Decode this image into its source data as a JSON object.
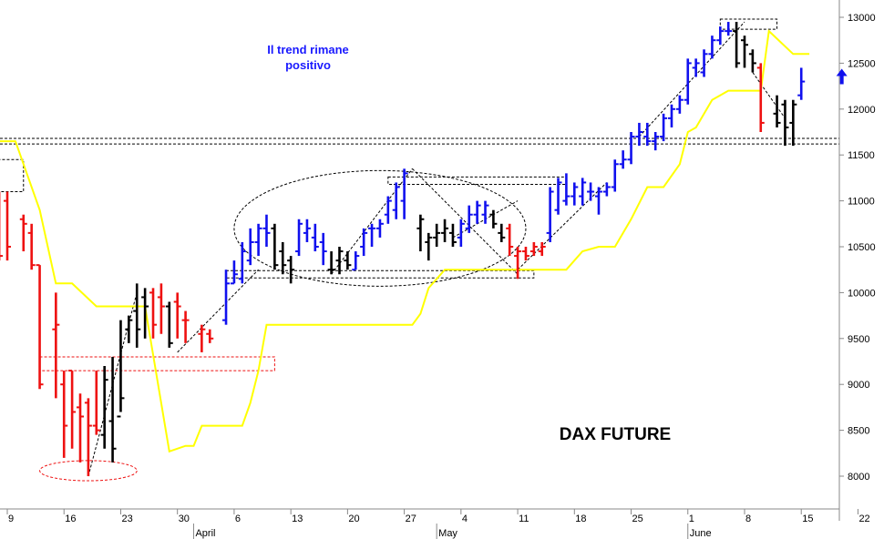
{
  "chart_data": {
    "type": "ohlc",
    "title": "DAX FUTURE",
    "comment_lines": [
      "Il trend rimane",
      "positivo"
    ],
    "ylim": [
      7650,
      13150
    ],
    "y_ticks": [
      8000,
      8500,
      9000,
      9500,
      10000,
      10500,
      11000,
      11500,
      12000,
      12500,
      13000
    ],
    "x_ticks": [
      {
        "label": "9",
        "day": 0
      },
      {
        "label": "16",
        "day": 7
      },
      {
        "label": "23",
        "day": 14
      },
      {
        "label": "30",
        "day": 21
      },
      {
        "label": "6",
        "day": 28
      },
      {
        "label": "13",
        "day": 35
      },
      {
        "label": "20",
        "day": 42
      },
      {
        "label": "27",
        "day": 49
      },
      {
        "label": "4",
        "day": 56
      },
      {
        "label": "11",
        "day": 63
      },
      {
        "label": "18",
        "day": 70
      },
      {
        "label": "25",
        "day": 77
      },
      {
        "label": "1",
        "day": 84
      },
      {
        "label": "8",
        "day": 91
      },
      {
        "label": "15",
        "day": 98
      },
      {
        "label": "22",
        "day": 105
      }
    ],
    "months": [
      {
        "label": "April",
        "day": 23
      },
      {
        "label": "May",
        "day": 53
      },
      {
        "label": "June",
        "day": 84
      }
    ],
    "colors": {
      "up": "#1010ee",
      "down": "#ee1111",
      "neutral": "#000000",
      "trend": "#ffff00",
      "annotation": "#ee1111",
      "arrow": "#1010ee"
    },
    "bars": [
      {
        "d": -1,
        "o": 11050,
        "h": 11100,
        "l": 10350,
        "c": 10400,
        "color": "down"
      },
      {
        "d": 0,
        "o": 11000,
        "h": 11100,
        "l": 10350,
        "c": 10500,
        "color": "down"
      },
      {
        "d": 2,
        "o": 10800,
        "h": 10850,
        "l": 10450,
        "c": 10750,
        "color": "down"
      },
      {
        "d": 3,
        "o": 10650,
        "h": 10750,
        "l": 10250,
        "c": 10300,
        "color": "down"
      },
      {
        "d": 4,
        "o": 10300,
        "h": 10300,
        "l": 8950,
        "c": 9000,
        "color": "down"
      },
      {
        "d": 6,
        "o": 9600,
        "h": 10000,
        "l": 8850,
        "c": 9650,
        "color": "down"
      },
      {
        "d": 7,
        "o": 9000,
        "h": 9150,
        "l": 8200,
        "c": 8550,
        "color": "down"
      },
      {
        "d": 8,
        "o": 9150,
        "h": 9150,
        "l": 8300,
        "c": 8700,
        "color": "down"
      },
      {
        "d": 9,
        "o": 8750,
        "h": 8900,
        "l": 8150,
        "c": 8650,
        "color": "down"
      },
      {
        "d": 10,
        "o": 8800,
        "h": 8850,
        "l": 8000,
        "c": 8550,
        "color": "down"
      },
      {
        "d": 11,
        "o": 8550,
        "h": 9150,
        "l": 8450,
        "c": 8500,
        "color": "down"
      },
      {
        "d": 12,
        "o": 8450,
        "h": 9200,
        "l": 8300,
        "c": 9050,
        "color": "neutral"
      },
      {
        "d": 13,
        "o": 8600,
        "h": 9300,
        "l": 8150,
        "c": 8300,
        "color": "neutral"
      },
      {
        "d": 14,
        "o": 8650,
        "h": 9700,
        "l": 8700,
        "c": 8850,
        "color": "neutral"
      },
      {
        "d": 15,
        "o": 9600,
        "h": 9750,
        "l": 9450,
        "c": 9700,
        "color": "neutral"
      },
      {
        "d": 16,
        "o": 9800,
        "h": 10100,
        "l": 9400,
        "c": 9600,
        "color": "neutral"
      },
      {
        "d": 17,
        "o": 9950,
        "h": 10050,
        "l": 9500,
        "c": 9850,
        "color": "neutral"
      },
      {
        "d": 18,
        "o": 10000,
        "h": 10050,
        "l": 9500,
        "c": 9650,
        "color": "down"
      },
      {
        "d": 19,
        "o": 9950,
        "h": 10100,
        "l": 9550,
        "c": 9850,
        "color": "down"
      },
      {
        "d": 20,
        "o": 9850,
        "h": 9900,
        "l": 9400,
        "c": 9450,
        "color": "neutral"
      },
      {
        "d": 21,
        "o": 9900,
        "h": 10000,
        "l": 9500,
        "c": 9850,
        "color": "down"
      },
      {
        "d": 22,
        "o": 9700,
        "h": 9800,
        "l": 9450,
        "c": 9700,
        "color": "down"
      },
      {
        "d": 24,
        "o": 9550,
        "h": 9650,
        "l": 9350,
        "c": 9600,
        "color": "down"
      },
      {
        "d": 25,
        "o": 9550,
        "h": 9600,
        "l": 9450,
        "c": 9500,
        "color": "down"
      },
      {
        "d": 27,
        "o": 9700,
        "h": 10250,
        "l": 9650,
        "c": 10100,
        "color": "up"
      },
      {
        "d": 28,
        "o": 10100,
        "h": 10350,
        "l": 10100,
        "c": 10200,
        "color": "up"
      },
      {
        "d": 29,
        "o": 10150,
        "h": 10550,
        "l": 10100,
        "c": 10450,
        "color": "up"
      },
      {
        "d": 30,
        "o": 10350,
        "h": 10700,
        "l": 10300,
        "c": 10550,
        "color": "up"
      },
      {
        "d": 31,
        "o": 10550,
        "h": 10750,
        "l": 10400,
        "c": 10700,
        "color": "up"
      },
      {
        "d": 32,
        "o": 10700,
        "h": 10850,
        "l": 10500,
        "c": 10650,
        "color": "up"
      },
      {
        "d": 33,
        "o": 10700,
        "h": 10750,
        "l": 10250,
        "c": 10300,
        "color": "neutral"
      },
      {
        "d": 34,
        "o": 10450,
        "h": 10550,
        "l": 10200,
        "c": 10300,
        "color": "neutral"
      },
      {
        "d": 35,
        "o": 10350,
        "h": 10400,
        "l": 10100,
        "c": 10250,
        "color": "neutral"
      },
      {
        "d": 36,
        "o": 10450,
        "h": 10800,
        "l": 10400,
        "c": 10750,
        "color": "up"
      },
      {
        "d": 37,
        "o": 10650,
        "h": 10800,
        "l": 10550,
        "c": 10700,
        "color": "up"
      },
      {
        "d": 38,
        "o": 10600,
        "h": 10750,
        "l": 10450,
        "c": 10500,
        "color": "up"
      },
      {
        "d": 39,
        "o": 10550,
        "h": 10650,
        "l": 10300,
        "c": 10450,
        "color": "up"
      },
      {
        "d": 40,
        "o": 10250,
        "h": 10450,
        "l": 10200,
        "c": 10250,
        "color": "neutral"
      },
      {
        "d": 41,
        "o": 10350,
        "h": 10500,
        "l": 10200,
        "c": 10450,
        "color": "neutral"
      },
      {
        "d": 42,
        "o": 10350,
        "h": 10450,
        "l": 10250,
        "c": 10300,
        "color": "neutral"
      },
      {
        "d": 43,
        "o": 10250,
        "h": 10450,
        "l": 10250,
        "c": 10400,
        "color": "up"
      },
      {
        "d": 44,
        "o": 10500,
        "h": 10700,
        "l": 10400,
        "c": 10650,
        "color": "up"
      },
      {
        "d": 45,
        "o": 10700,
        "h": 10750,
        "l": 10500,
        "c": 10700,
        "color": "up"
      },
      {
        "d": 46,
        "o": 10700,
        "h": 10800,
        "l": 10600,
        "c": 10750,
        "color": "up"
      },
      {
        "d": 47,
        "o": 10850,
        "h": 11050,
        "l": 10750,
        "c": 11000,
        "color": "up"
      },
      {
        "d": 48,
        "o": 10900,
        "h": 11200,
        "l": 10800,
        "c": 11150,
        "color": "up"
      },
      {
        "d": 49,
        "o": 11000,
        "h": 11350,
        "l": 10800,
        "c": 11300,
        "color": "up"
      },
      {
        "d": 51,
        "o": 10700,
        "h": 10850,
        "l": 10450,
        "c": 10800,
        "color": "neutral"
      },
      {
        "d": 52,
        "o": 10550,
        "h": 10650,
        "l": 10350,
        "c": 10600,
        "color": "neutral"
      },
      {
        "d": 53,
        "o": 10600,
        "h": 10750,
        "l": 10500,
        "c": 10650,
        "color": "neutral"
      },
      {
        "d": 54,
        "o": 10650,
        "h": 10800,
        "l": 10550,
        "c": 10700,
        "color": "neutral"
      },
      {
        "d": 55,
        "o": 10650,
        "h": 10750,
        "l": 10500,
        "c": 10550,
        "color": "neutral"
      },
      {
        "d": 56,
        "o": 10600,
        "h": 10800,
        "l": 10500,
        "c": 10750,
        "color": "up"
      },
      {
        "d": 57,
        "o": 10700,
        "h": 10950,
        "l": 10650,
        "c": 10850,
        "color": "up"
      },
      {
        "d": 58,
        "o": 10850,
        "h": 11000,
        "l": 10750,
        "c": 10950,
        "color": "up"
      },
      {
        "d": 59,
        "o": 10850,
        "h": 11000,
        "l": 10750,
        "c": 10950,
        "color": "up"
      },
      {
        "d": 60,
        "o": 10850,
        "h": 10900,
        "l": 10700,
        "c": 10750,
        "color": "neutral"
      },
      {
        "d": 61,
        "o": 10650,
        "h": 10750,
        "l": 10550,
        "c": 10600,
        "color": "neutral"
      },
      {
        "d": 62,
        "o": 10700,
        "h": 10750,
        "l": 10400,
        "c": 10500,
        "color": "down"
      },
      {
        "d": 63,
        "o": 10400,
        "h": 10500,
        "l": 10150,
        "c": 10450,
        "color": "down"
      },
      {
        "d": 64,
        "o": 10450,
        "h": 10500,
        "l": 10350,
        "c": 10400,
        "color": "down"
      },
      {
        "d": 65,
        "o": 10450,
        "h": 10550,
        "l": 10400,
        "c": 10500,
        "color": "down"
      },
      {
        "d": 66,
        "o": 10450,
        "h": 10550,
        "l": 10400,
        "c": 10500,
        "color": "down"
      },
      {
        "d": 67,
        "o": 10650,
        "h": 11150,
        "l": 10550,
        "c": 11100,
        "color": "up"
      },
      {
        "d": 68,
        "o": 10900,
        "h": 11250,
        "l": 10850,
        "c": 11200,
        "color": "up"
      },
      {
        "d": 69,
        "o": 11000,
        "h": 11300,
        "l": 10950,
        "c": 11050,
        "color": "up"
      },
      {
        "d": 70,
        "o": 11050,
        "h": 11200,
        "l": 10950,
        "c": 11150,
        "color": "up"
      },
      {
        "d": 71,
        "o": 11050,
        "h": 11250,
        "l": 10950,
        "c": 11200,
        "color": "up"
      },
      {
        "d": 72,
        "o": 11100,
        "h": 11200,
        "l": 11000,
        "c": 11100,
        "color": "up"
      },
      {
        "d": 73,
        "o": 11050,
        "h": 11150,
        "l": 10850,
        "c": 11100,
        "color": "up"
      },
      {
        "d": 74,
        "o": 11100,
        "h": 11200,
        "l": 11050,
        "c": 11150,
        "color": "up"
      },
      {
        "d": 75,
        "o": 11150,
        "h": 11450,
        "l": 11100,
        "c": 11400,
        "color": "up"
      },
      {
        "d": 76,
        "o": 11400,
        "h": 11550,
        "l": 11350,
        "c": 11450,
        "color": "up"
      },
      {
        "d": 77,
        "o": 11450,
        "h": 11750,
        "l": 11400,
        "c": 11700,
        "color": "up"
      },
      {
        "d": 78,
        "o": 11700,
        "h": 11850,
        "l": 11600,
        "c": 11750,
        "color": "up"
      },
      {
        "d": 79,
        "o": 11700,
        "h": 11850,
        "l": 11600,
        "c": 11650,
        "color": "up"
      },
      {
        "d": 80,
        "o": 11650,
        "h": 11750,
        "l": 11550,
        "c": 11700,
        "color": "up"
      },
      {
        "d": 81,
        "o": 11700,
        "h": 11950,
        "l": 11650,
        "c": 11900,
        "color": "up"
      },
      {
        "d": 82,
        "o": 11900,
        "h": 12050,
        "l": 11800,
        "c": 12000,
        "color": "up"
      },
      {
        "d": 83,
        "o": 12000,
        "h": 12150,
        "l": 11950,
        "c": 12100,
        "color": "up"
      },
      {
        "d": 84,
        "o": 12100,
        "h": 12550,
        "l": 12050,
        "c": 12500,
        "color": "up"
      },
      {
        "d": 85,
        "o": 12450,
        "h": 12550,
        "l": 12350,
        "c": 12500,
        "color": "up"
      },
      {
        "d": 86,
        "o": 12400,
        "h": 12650,
        "l": 12350,
        "c": 12600,
        "color": "up"
      },
      {
        "d": 87,
        "o": 12600,
        "h": 12800,
        "l": 12550,
        "c": 12750,
        "color": "up"
      },
      {
        "d": 88,
        "o": 12750,
        "h": 12900,
        "l": 12700,
        "c": 12850,
        "color": "up"
      },
      {
        "d": 89,
        "o": 12850,
        "h": 12950,
        "l": 12800,
        "c": 12850,
        "color": "up"
      },
      {
        "d": 90,
        "o": 12850,
        "h": 12950,
        "l": 12450,
        "c": 12500,
        "color": "neutral"
      },
      {
        "d": 91,
        "o": 12750,
        "h": 12800,
        "l": 12450,
        "c": 12700,
        "color": "neutral"
      },
      {
        "d": 92,
        "o": 12600,
        "h": 12650,
        "l": 12400,
        "c": 12500,
        "color": "neutral"
      },
      {
        "d": 93,
        "o": 12450,
        "h": 12500,
        "l": 11750,
        "c": 11850,
        "color": "down"
      },
      {
        "d": 95,
        "o": 11950,
        "h": 12150,
        "l": 11800,
        "c": 11850,
        "color": "neutral"
      },
      {
        "d": 96,
        "o": 12050,
        "h": 12100,
        "l": 11600,
        "c": 11800,
        "color": "neutral"
      },
      {
        "d": 97,
        "o": 11850,
        "h": 12100,
        "l": 11600,
        "c": 12050,
        "color": "neutral"
      },
      {
        "d": 98,
        "o": 12150,
        "h": 12450,
        "l": 12100,
        "c": 12300,
        "color": "up"
      }
    ],
    "trend_line": [
      {
        "d": -3,
        "v": 12300
      },
      {
        "d": -2,
        "v": 11650
      },
      {
        "d": 1,
        "v": 11650
      },
      {
        "d": 4,
        "v": 10900
      },
      {
        "d": 6,
        "v": 10100
      },
      {
        "d": 8,
        "v": 10100
      },
      {
        "d": 11,
        "v": 9850
      },
      {
        "d": 17,
        "v": 9850
      },
      {
        "d": 20,
        "v": 8270
      },
      {
        "d": 22,
        "v": 8330
      },
      {
        "d": 23,
        "v": 8330
      },
      {
        "d": 24,
        "v": 8550
      },
      {
        "d": 29,
        "v": 8550
      },
      {
        "d": 30,
        "v": 8800
      },
      {
        "d": 31,
        "v": 9150
      },
      {
        "d": 32,
        "v": 9650
      },
      {
        "d": 50,
        "v": 9650
      },
      {
        "d": 51,
        "v": 9770
      },
      {
        "d": 52,
        "v": 10050
      },
      {
        "d": 54,
        "v": 10250
      },
      {
        "d": 69,
        "v": 10250
      },
      {
        "d": 71,
        "v": 10450
      },
      {
        "d": 73,
        "v": 10500
      },
      {
        "d": 75,
        "v": 10500
      },
      {
        "d": 77,
        "v": 10800
      },
      {
        "d": 79,
        "v": 11150
      },
      {
        "d": 81,
        "v": 11150
      },
      {
        "d": 83,
        "v": 11400
      },
      {
        "d": 84,
        "v": 11750
      },
      {
        "d": 85,
        "v": 11800
      },
      {
        "d": 87,
        "v": 12100
      },
      {
        "d": 89,
        "v": 12200
      },
      {
        "d": 93,
        "v": 12200
      },
      {
        "d": 94,
        "v": 12850
      },
      {
        "d": 97,
        "v": 12600
      },
      {
        "d": 99,
        "v": 12600
      }
    ],
    "support_lines": [
      11680,
      11620
    ],
    "annotation_boxes": [
      {
        "d0": 27,
        "d1": 65,
        "v0": 10160,
        "v1": 10240,
        "color": "black"
      },
      {
        "d0": 47,
        "d1": 69,
        "v0": 11180,
        "v1": 11260,
        "color": "black"
      },
      {
        "d0": 88,
        "d1": 95,
        "v0": 12870,
        "v1": 12980,
        "color": "black"
      },
      {
        "d0": -4,
        "d1": 2,
        "v0": 11100,
        "v1": 11450,
        "color": "black"
      },
      {
        "d0": 4,
        "d1": 33,
        "v0": 9150,
        "v1": 9300,
        "color": "red"
      }
    ],
    "trendlines_dashed": [
      [
        {
          "d": 10,
          "v": 8000
        },
        {
          "d": 16,
          "v": 10000
        }
      ],
      [
        {
          "d": 21,
          "v": 9350
        },
        {
          "d": 31,
          "v": 10250
        }
      ],
      [
        {
          "d": 40,
          "v": 10200
        },
        {
          "d": 50,
          "v": 11350
        }
      ],
      [
        {
          "d": 50,
          "v": 11350
        },
        {
          "d": 63,
          "v": 10200
        }
      ],
      [
        {
          "d": 55,
          "v": 10600
        },
        {
          "d": 63,
          "v": 11000
        }
      ],
      [
        {
          "d": 63,
          "v": 10250
        },
        {
          "d": 74,
          "v": 11200
        }
      ],
      [
        {
          "d": 78,
          "v": 11700
        },
        {
          "d": 91,
          "v": 12950
        }
      ],
      [
        {
          "d": 92,
          "v": 12400
        },
        {
          "d": 96,
          "v": 11900
        }
      ]
    ],
    "ellipses": [
      {
        "cd": 46,
        "cv": 10700,
        "rd": 18,
        "rv": 630,
        "color": "black"
      },
      {
        "cd": 10,
        "cv": 8060,
        "rd": 6,
        "rv": 110,
        "color": "red"
      }
    ],
    "arrow": {
      "d": 103,
      "v": 12350,
      "direction": "up"
    }
  }
}
